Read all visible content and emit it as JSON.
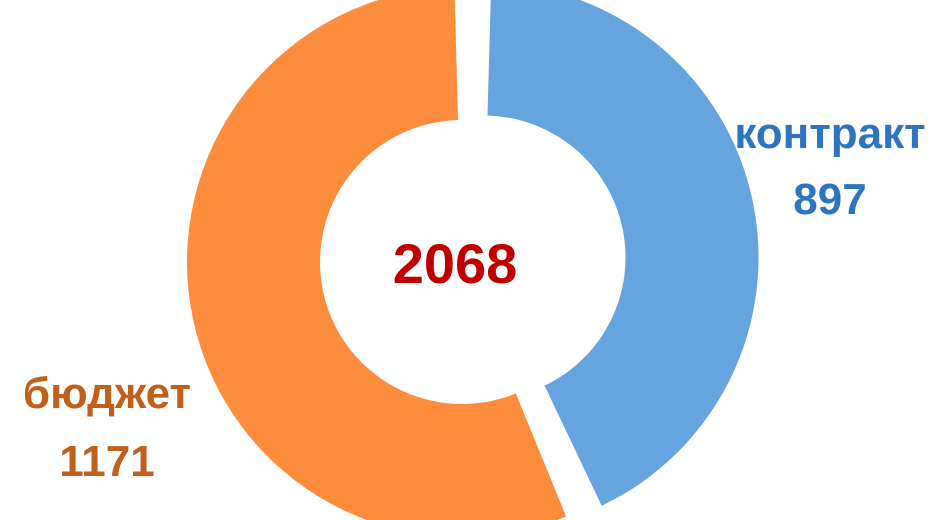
{
  "chart_data": {
    "type": "pie",
    "title": "",
    "total": 2068,
    "total_label": "2068",
    "series": [
      {
        "name": "контракт",
        "value": 897,
        "value_label": "897",
        "color": "#65a4df",
        "label_color": "#2e75c0",
        "exploded": true
      },
      {
        "name": "бюджет",
        "value": 1171,
        "value_label": "1171",
        "color": "#fd8c3d",
        "label_color": "#c0601c",
        "exploded": false
      }
    ],
    "center_color": "#c00000",
    "donut": true,
    "legend": "none"
  }
}
